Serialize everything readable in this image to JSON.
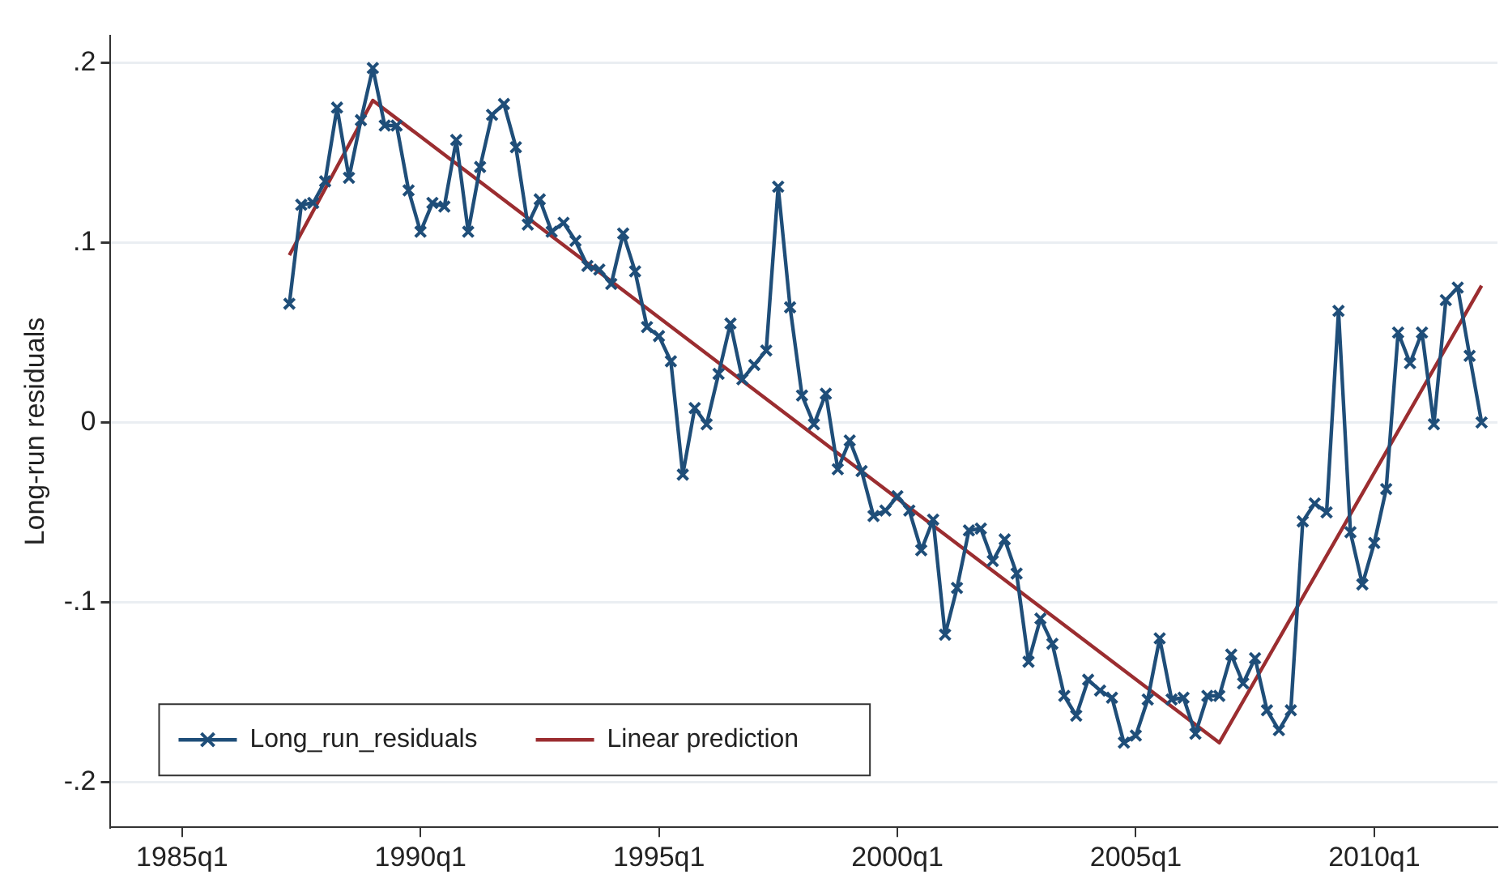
{
  "chart_data": {
    "type": "line",
    "ylabel": "Long-run residuals",
    "x": [
      "1987-04",
      "1987-07",
      "1987-10",
      "1988-01",
      "1988-04",
      "1988-07",
      "1988-10",
      "1989-01",
      "1989-04",
      "1989-07",
      "1989-10",
      "1990-01",
      "1990-04",
      "1990-07",
      "1990-10",
      "1991-01",
      "1991-04",
      "1991-07",
      "1991-10",
      "1992-01",
      "1992-04",
      "1992-07",
      "1992-10",
      "1993-01",
      "1993-04",
      "1993-07",
      "1993-10",
      "1994-01",
      "1994-04",
      "1994-07",
      "1994-10",
      "1995-01",
      "1995-04",
      "1995-07",
      "1995-10",
      "1996-01",
      "1996-04",
      "1996-07",
      "1996-10",
      "1997-01",
      "1997-04",
      "1997-07",
      "1997-10",
      "1998-01",
      "1998-04",
      "1998-07",
      "1998-10",
      "1999-01",
      "1999-04",
      "1999-07",
      "1999-10",
      "2000-01",
      "2000-04",
      "2000-07",
      "2000-10",
      "2001-01",
      "2001-04",
      "2001-07",
      "2001-10",
      "2002-01",
      "2002-04",
      "2002-07",
      "2002-10",
      "2003-01",
      "2003-04",
      "2003-07",
      "2003-10",
      "2004-01",
      "2004-04",
      "2004-07",
      "2004-10",
      "2005-01",
      "2005-04",
      "2005-07",
      "2005-10",
      "2006-01",
      "2006-04",
      "2006-07",
      "2006-10",
      "2007-01",
      "2007-04",
      "2007-07",
      "2007-10",
      "2008-01",
      "2008-04",
      "2008-07",
      "2008-10",
      "2009-01",
      "2009-04",
      "2009-07",
      "2009-10",
      "2010-01",
      "2010-04",
      "2010-07",
      "2010-10",
      "2011-01",
      "2011-04",
      "2011-07",
      "2011-10",
      "2012-01",
      "2012-04"
    ],
    "series": [
      {
        "name": "Long_run_residuals",
        "color": "#1f4e79",
        "marker": "cross",
        "values": [
          0.066,
          0.121,
          0.122,
          0.134,
          0.175,
          0.136,
          0.168,
          0.197,
          0.165,
          0.165,
          0.129,
          0.106,
          0.122,
          0.12,
          0.157,
          0.106,
          0.142,
          0.171,
          0.177,
          0.153,
          0.11,
          0.124,
          0.106,
          0.111,
          0.101,
          0.087,
          0.085,
          0.077,
          0.105,
          0.084,
          0.053,
          0.048,
          0.034,
          -0.029,
          0.008,
          -0.001,
          0.027,
          0.055,
          0.024,
          0.032,
          0.04,
          0.131,
          0.064,
          0.015,
          -0.001,
          0.016,
          -0.026,
          -0.01,
          -0.027,
          -0.052,
          -0.049,
          -0.041,
          -0.049,
          -0.071,
          -0.054,
          -0.118,
          -0.092,
          -0.06,
          -0.059,
          -0.077,
          -0.065,
          -0.084,
          -0.133,
          -0.109,
          -0.123,
          -0.152,
          -0.163,
          -0.143,
          -0.149,
          -0.153,
          -0.178,
          -0.174,
          -0.154,
          -0.12,
          -0.154,
          -0.153,
          -0.173,
          -0.152,
          -0.152,
          -0.129,
          -0.145,
          -0.131,
          -0.16,
          -0.171,
          -0.16,
          -0.055,
          -0.045,
          -0.05,
          0.062,
          -0.061,
          -0.09,
          -0.067,
          -0.037,
          0.05,
          0.033,
          0.05,
          -0.001,
          0.068,
          0.075,
          0.037,
          0.0
        ]
      },
      {
        "name": "Linear prediction",
        "color": "#9b2d30",
        "x": [
          "1987-04",
          "1989-01",
          "2006-10",
          "2012-04"
        ],
        "values": [
          0.093,
          0.179,
          -0.178,
          0.076
        ]
      }
    ],
    "xlim": [
      "1983-07",
      "2012-08"
    ],
    "xticks": [
      {
        "value": "1985-01",
        "label": "1985q1"
      },
      {
        "value": "1990-01",
        "label": "1990q1"
      },
      {
        "value": "1995-01",
        "label": "1995q1"
      },
      {
        "value": "2000-01",
        "label": "2000q1"
      },
      {
        "value": "2005-01",
        "label": "2005q1"
      },
      {
        "value": "2010-01",
        "label": "2010q1"
      }
    ],
    "ylim": [
      -0.225,
      0.215
    ],
    "yticks": [
      {
        "value": -0.2,
        "label": "-.2"
      },
      {
        "value": -0.1,
        "label": "-.1"
      },
      0,
      {
        "value": 0.1,
        "label": ".1"
      },
      {
        "value": 0.2,
        "label": ".2"
      }
    ],
    "grid": "y",
    "legend": "bottom left"
  }
}
